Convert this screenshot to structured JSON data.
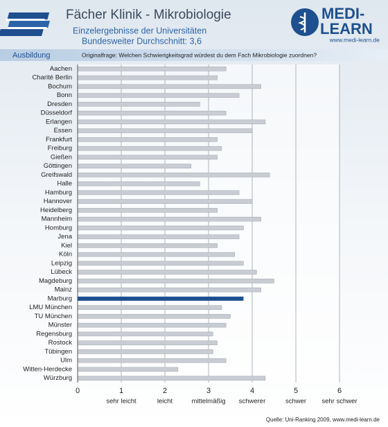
{
  "header": {
    "title": "Fächer Klinik - Mikrobiologie",
    "subtitle": "Einzelergebnisse der Universitäten",
    "average": "Bundesweiter Durchschnitt: 3,6",
    "logo_top": "MEDI-",
    "logo_bottom": "LEARN",
    "logo_url": "www.medi-learn.de",
    "section": "Ausbildung",
    "question": "Originalfrage: Welchen Schwierigkeitsgrad würdest du dem Fach Mikrobiologie zuordnen?"
  },
  "chart_data": {
    "type": "hbar",
    "categories": [
      "Aachen",
      "Charité Berlin",
      "Bochum",
      "Bonn",
      "Dresden",
      "Düsseldorf",
      "Erlangen",
      "Essen",
      "Frankfurt",
      "Freiburg",
      "Gießen",
      "Göttingen",
      "Greifswald",
      "Halle",
      "Hamburg",
      "Hannover",
      "Heidelberg",
      "Mannheim",
      "Homburg",
      "Jena",
      "Kiel",
      "Köln",
      "Leipzig",
      "Lübeck",
      "Magdeburg",
      "Mainz",
      "Marburg",
      "LMU München",
      "TU München",
      "Münster",
      "Regensburg",
      "Rostock",
      "Tübingen",
      "Ulm",
      "Witten-Herdecke",
      "Würzburg"
    ],
    "values": [
      3.4,
      3.2,
      4.2,
      3.7,
      2.8,
      3.4,
      4.3,
      4.0,
      3.2,
      3.3,
      3.2,
      2.6,
      4.4,
      2.8,
      3.7,
      4.0,
      3.2,
      4.2,
      3.8,
      3.7,
      3.2,
      3.6,
      3.8,
      4.1,
      4.5,
      4.2,
      3.8,
      3.3,
      3.5,
      3.4,
      3.1,
      3.2,
      3.1,
      3.4,
      2.3,
      4.3
    ],
    "color": "#c9cdd3",
    "highlight": "Marburg",
    "highlight_color": "#1e4f8f",
    "xlim": [
      0,
      6
    ],
    "xticks": [
      0,
      1,
      2,
      3,
      4,
      5,
      6
    ],
    "grid": true,
    "scale_labels": [
      {
        "value": 1,
        "label": "sehr leicht"
      },
      {
        "value": 2,
        "label": "leicht"
      },
      {
        "value": 3,
        "label": "mittelmäßig"
      },
      {
        "value": 4,
        "label": "schwerer"
      },
      {
        "value": 5,
        "label": "schwer"
      },
      {
        "value": 6,
        "label": "sehr schwer"
      }
    ],
    "source": "Quelle: Uni-Ranking 2009, www.medi-learn.de"
  }
}
